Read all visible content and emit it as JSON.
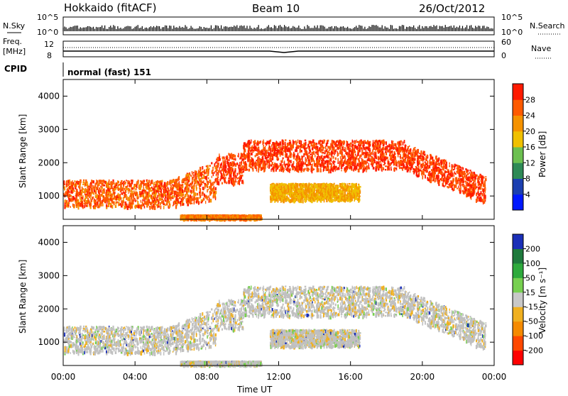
{
  "header": {
    "station": "Hokkaido (fitACF)",
    "beam": "Beam 10",
    "date": "26/Oct/2012"
  },
  "summary_panels": {
    "nsky": {
      "label": "N.Sky",
      "top_tick": "10^5",
      "bottom_tick": "10^0"
    },
    "nsearch": {
      "label": "N.Search",
      "top_tick": "10^5",
      "bottom_tick": "10^0"
    },
    "freq": {
      "label": "Freq.",
      "unit": "[MHz]",
      "tick_top": "12",
      "tick_bottom": "8"
    },
    "nave": {
      "label": "Nave",
      "tick_top": "60",
      "tick_bottom": "0"
    },
    "cpid": {
      "label": "CPID",
      "value": "normal (fast) 151"
    }
  },
  "chart_data": [
    {
      "type": "heatmap",
      "parameter": "Power",
      "ylabel": "Slant Range [km]",
      "xlabel": "",
      "ylim": [
        300,
        4500
      ],
      "xlim_hours": [
        0,
        24
      ],
      "x_ticks": [
        "00:00",
        "04:00",
        "08:00",
        "12:00",
        "16:00",
        "20:00",
        "00:00"
      ],
      "y_ticks": [
        1000,
        2000,
        3000,
        4000
      ],
      "colorbar": {
        "label": "Power [dB]",
        "ticks": [
          4,
          8,
          12,
          16,
          20,
          24,
          28
        ],
        "colors": [
          "#0018ff",
          "#1b3fb0",
          "#2e8a56",
          "#6cc050",
          "#f0c000",
          "#f59200",
          "#ff5a00",
          "#ff1a00"
        ]
      },
      "echo_bands": [
        {
          "t": [
            0,
            8.5
          ],
          "range_km": [
            700,
            1500
          ],
          "power_db": 26
        },
        {
          "t": [
            8.5,
            23.5
          ],
          "range_km": [
            1800,
            2700
          ],
          "power_db": 28
        },
        {
          "t": [
            11.5,
            16.5
          ],
          "range_km": [
            900,
            1400
          ],
          "power_db": 20
        },
        {
          "t": [
            6.5,
            11
          ],
          "range_km": [
            350,
            450
          ],
          "power_db": 24
        }
      ]
    },
    {
      "type": "heatmap",
      "parameter": "Velocity",
      "ylabel": "Slant Range [km]",
      "xlabel": "Time UT",
      "ylim": [
        300,
        4500
      ],
      "xlim_hours": [
        0,
        24
      ],
      "x_ticks": [
        "00:00",
        "04:00",
        "08:00",
        "12:00",
        "16:00",
        "20:00",
        "00:00"
      ],
      "y_ticks": [
        1000,
        2000,
        3000,
        4000
      ],
      "colorbar": {
        "label": "Velocity [m s⁻¹]",
        "ticks": [
          200,
          100,
          50,
          15,
          -15,
          -50,
          -100,
          -200
        ],
        "colors": [
          "#1a2fb8",
          "#1e7a3c",
          "#2eaa3c",
          "#77d050",
          "#c8c8c8",
          "#f0b020",
          "#f58a00",
          "#ff4800",
          "#ff0000"
        ]
      },
      "velocity_ms_dominant": 0
    }
  ],
  "colors": {
    "ground_scatter": "#c0c0c0",
    "axis": "#000000"
  }
}
